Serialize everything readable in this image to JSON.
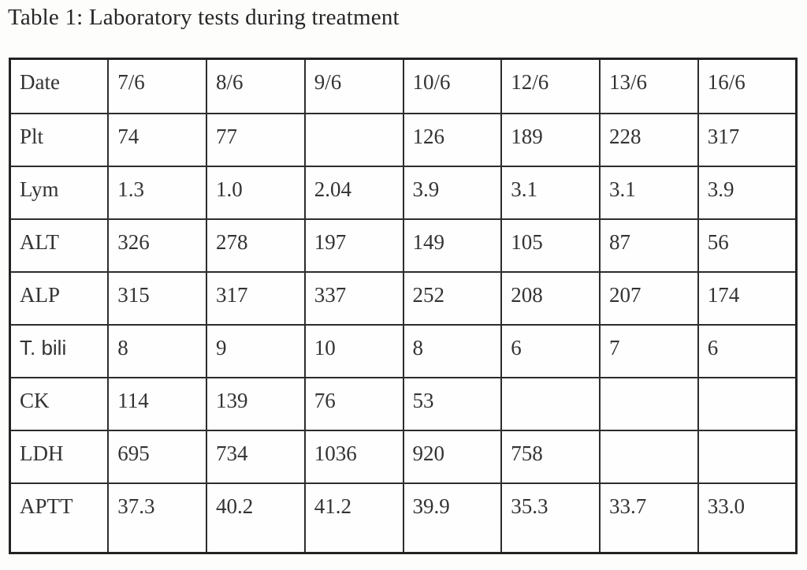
{
  "title": "Table 1: Laboratory tests during treatment",
  "table": {
    "header": [
      "Date",
      "7/6",
      "8/6",
      "9/6",
      "10/6",
      "12/6",
      "13/6",
      "16/6"
    ],
    "rows": [
      {
        "label": "Plt",
        "values": [
          "74",
          "77",
          "",
          "126",
          "189",
          "228",
          "317"
        ]
      },
      {
        "label": "Lym",
        "values": [
          "1.3",
          "1.0",
          "2.04",
          "3.9",
          "3.1",
          "3.1",
          "3.9"
        ]
      },
      {
        "label": "ALT",
        "values": [
          "326",
          "278",
          "197",
          "149",
          "105",
          "87",
          "56"
        ]
      },
      {
        "label": "ALP",
        "values": [
          "315",
          "317",
          "337",
          "252",
          "208",
          "207",
          "174"
        ]
      },
      {
        "label": "T. bili",
        "values": [
          "8",
          "9",
          "10",
          "8",
          "6",
          "7",
          "6"
        ]
      },
      {
        "label": "CK",
        "values": [
          "114",
          "139",
          "76",
          "53",
          "",
          "",
          ""
        ]
      },
      {
        "label": "LDH",
        "values": [
          "695",
          "734",
          "1036",
          "920",
          "758",
          "",
          ""
        ]
      },
      {
        "label": "APTT",
        "values": [
          "37.3",
          "40.2",
          "41.2",
          "39.9",
          "35.3",
          "33.7",
          "33.0"
        ]
      }
    ]
  },
  "chart_data": {
    "type": "table",
    "title": "Table 1: Laboratory tests during treatment",
    "columns": [
      "Date",
      "7/6",
      "8/6",
      "9/6",
      "10/6",
      "12/6",
      "13/6",
      "16/6"
    ],
    "rows": [
      [
        "Plt",
        74,
        77,
        null,
        126,
        189,
        228,
        317
      ],
      [
        "Lym",
        1.3,
        1.0,
        2.04,
        3.9,
        3.1,
        3.1,
        3.9
      ],
      [
        "ALT",
        326,
        278,
        197,
        149,
        105,
        87,
        56
      ],
      [
        "ALP",
        315,
        317,
        337,
        252,
        208,
        207,
        174
      ],
      [
        "T. bili",
        8,
        9,
        10,
        8,
        6,
        7,
        6
      ],
      [
        "CK",
        114,
        139,
        76,
        53,
        null,
        null,
        null
      ],
      [
        "LDH",
        695,
        734,
        1036,
        920,
        758,
        null,
        null
      ],
      [
        "APTT",
        37.3,
        40.2,
        41.2,
        39.9,
        35.3,
        33.7,
        33.0
      ]
    ]
  }
}
